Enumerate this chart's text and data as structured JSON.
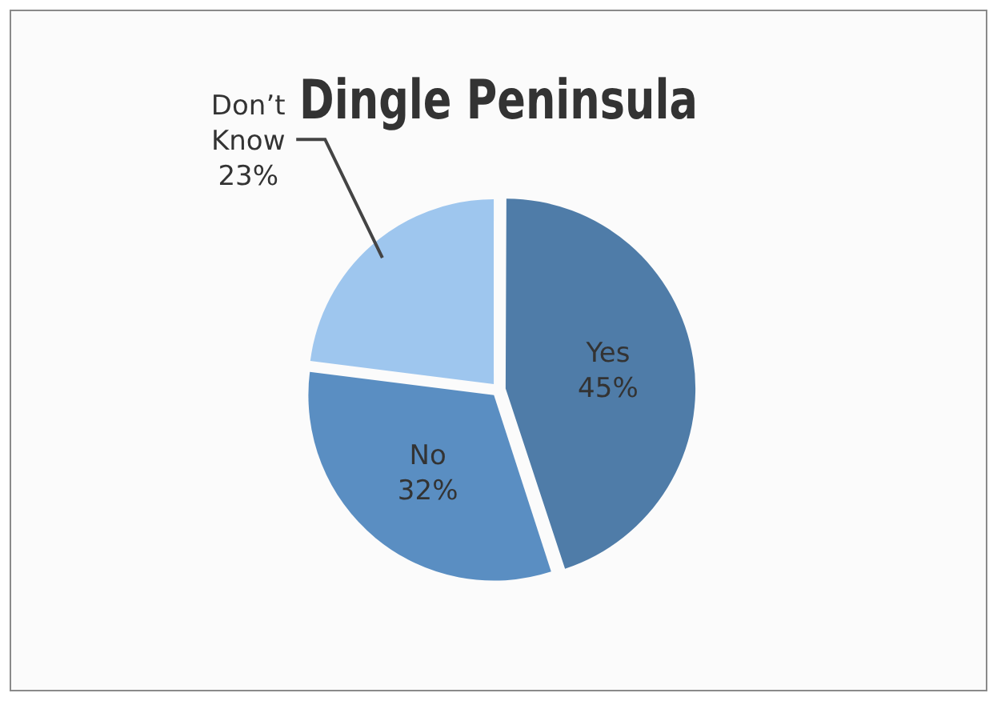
{
  "chart_data": {
    "type": "pie",
    "title": "Dingle Peninsula",
    "categories": [
      "Yes",
      "No",
      "Don’t Know"
    ],
    "values": [
      45,
      32,
      23
    ],
    "value_labels": [
      "45%",
      "32%",
      "23%"
    ],
    "colors": [
      "#4f7ca8",
      "#5a8ec2",
      "#9ec6ee"
    ],
    "legend": false
  }
}
